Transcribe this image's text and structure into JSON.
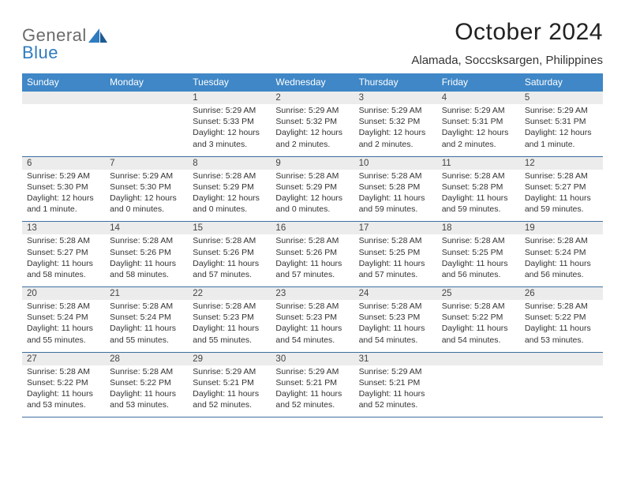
{
  "colors": {
    "header_bg": "#3f87c7",
    "daynum_bg": "#ececec",
    "row_border": "#3f6fa0",
    "logo_gray": "#6b6b6b",
    "logo_blue": "#2f7bbf"
  },
  "logo": {
    "general": "General",
    "blue": "Blue"
  },
  "title": "October 2024",
  "location": "Alamada, Soccsksargen, Philippines",
  "day_headers": [
    "Sunday",
    "Monday",
    "Tuesday",
    "Wednesday",
    "Thursday",
    "Friday",
    "Saturday"
  ],
  "weeks": [
    {
      "nums": [
        "",
        "",
        "1",
        "2",
        "3",
        "4",
        "5"
      ],
      "cells": [
        null,
        null,
        {
          "sunrise": "Sunrise: 5:29 AM",
          "sunset": "Sunset: 5:33 PM",
          "daylight": "Daylight: 12 hours and 3 minutes."
        },
        {
          "sunrise": "Sunrise: 5:29 AM",
          "sunset": "Sunset: 5:32 PM",
          "daylight": "Daylight: 12 hours and 2 minutes."
        },
        {
          "sunrise": "Sunrise: 5:29 AM",
          "sunset": "Sunset: 5:32 PM",
          "daylight": "Daylight: 12 hours and 2 minutes."
        },
        {
          "sunrise": "Sunrise: 5:29 AM",
          "sunset": "Sunset: 5:31 PM",
          "daylight": "Daylight: 12 hours and 2 minutes."
        },
        {
          "sunrise": "Sunrise: 5:29 AM",
          "sunset": "Sunset: 5:31 PM",
          "daylight": "Daylight: 12 hours and 1 minute."
        }
      ]
    },
    {
      "nums": [
        "6",
        "7",
        "8",
        "9",
        "10",
        "11",
        "12"
      ],
      "cells": [
        {
          "sunrise": "Sunrise: 5:29 AM",
          "sunset": "Sunset: 5:30 PM",
          "daylight": "Daylight: 12 hours and 1 minute."
        },
        {
          "sunrise": "Sunrise: 5:29 AM",
          "sunset": "Sunset: 5:30 PM",
          "daylight": "Daylight: 12 hours and 0 minutes."
        },
        {
          "sunrise": "Sunrise: 5:28 AM",
          "sunset": "Sunset: 5:29 PM",
          "daylight": "Daylight: 12 hours and 0 minutes."
        },
        {
          "sunrise": "Sunrise: 5:28 AM",
          "sunset": "Sunset: 5:29 PM",
          "daylight": "Daylight: 12 hours and 0 minutes."
        },
        {
          "sunrise": "Sunrise: 5:28 AM",
          "sunset": "Sunset: 5:28 PM",
          "daylight": "Daylight: 11 hours and 59 minutes."
        },
        {
          "sunrise": "Sunrise: 5:28 AM",
          "sunset": "Sunset: 5:28 PM",
          "daylight": "Daylight: 11 hours and 59 minutes."
        },
        {
          "sunrise": "Sunrise: 5:28 AM",
          "sunset": "Sunset: 5:27 PM",
          "daylight": "Daylight: 11 hours and 59 minutes."
        }
      ]
    },
    {
      "nums": [
        "13",
        "14",
        "15",
        "16",
        "17",
        "18",
        "19"
      ],
      "cells": [
        {
          "sunrise": "Sunrise: 5:28 AM",
          "sunset": "Sunset: 5:27 PM",
          "daylight": "Daylight: 11 hours and 58 minutes."
        },
        {
          "sunrise": "Sunrise: 5:28 AM",
          "sunset": "Sunset: 5:26 PM",
          "daylight": "Daylight: 11 hours and 58 minutes."
        },
        {
          "sunrise": "Sunrise: 5:28 AM",
          "sunset": "Sunset: 5:26 PM",
          "daylight": "Daylight: 11 hours and 57 minutes."
        },
        {
          "sunrise": "Sunrise: 5:28 AM",
          "sunset": "Sunset: 5:26 PM",
          "daylight": "Daylight: 11 hours and 57 minutes."
        },
        {
          "sunrise": "Sunrise: 5:28 AM",
          "sunset": "Sunset: 5:25 PM",
          "daylight": "Daylight: 11 hours and 57 minutes."
        },
        {
          "sunrise": "Sunrise: 5:28 AM",
          "sunset": "Sunset: 5:25 PM",
          "daylight": "Daylight: 11 hours and 56 minutes."
        },
        {
          "sunrise": "Sunrise: 5:28 AM",
          "sunset": "Sunset: 5:24 PM",
          "daylight": "Daylight: 11 hours and 56 minutes."
        }
      ]
    },
    {
      "nums": [
        "20",
        "21",
        "22",
        "23",
        "24",
        "25",
        "26"
      ],
      "cells": [
        {
          "sunrise": "Sunrise: 5:28 AM",
          "sunset": "Sunset: 5:24 PM",
          "daylight": "Daylight: 11 hours and 55 minutes."
        },
        {
          "sunrise": "Sunrise: 5:28 AM",
          "sunset": "Sunset: 5:24 PM",
          "daylight": "Daylight: 11 hours and 55 minutes."
        },
        {
          "sunrise": "Sunrise: 5:28 AM",
          "sunset": "Sunset: 5:23 PM",
          "daylight": "Daylight: 11 hours and 55 minutes."
        },
        {
          "sunrise": "Sunrise: 5:28 AM",
          "sunset": "Sunset: 5:23 PM",
          "daylight": "Daylight: 11 hours and 54 minutes."
        },
        {
          "sunrise": "Sunrise: 5:28 AM",
          "sunset": "Sunset: 5:23 PM",
          "daylight": "Daylight: 11 hours and 54 minutes."
        },
        {
          "sunrise": "Sunrise: 5:28 AM",
          "sunset": "Sunset: 5:22 PM",
          "daylight": "Daylight: 11 hours and 54 minutes."
        },
        {
          "sunrise": "Sunrise: 5:28 AM",
          "sunset": "Sunset: 5:22 PM",
          "daylight": "Daylight: 11 hours and 53 minutes."
        }
      ]
    },
    {
      "nums": [
        "27",
        "28",
        "29",
        "30",
        "31",
        "",
        ""
      ],
      "cells": [
        {
          "sunrise": "Sunrise: 5:28 AM",
          "sunset": "Sunset: 5:22 PM",
          "daylight": "Daylight: 11 hours and 53 minutes."
        },
        {
          "sunrise": "Sunrise: 5:28 AM",
          "sunset": "Sunset: 5:22 PM",
          "daylight": "Daylight: 11 hours and 53 minutes."
        },
        {
          "sunrise": "Sunrise: 5:29 AM",
          "sunset": "Sunset: 5:21 PM",
          "daylight": "Daylight: 11 hours and 52 minutes."
        },
        {
          "sunrise": "Sunrise: 5:29 AM",
          "sunset": "Sunset: 5:21 PM",
          "daylight": "Daylight: 11 hours and 52 minutes."
        },
        {
          "sunrise": "Sunrise: 5:29 AM",
          "sunset": "Sunset: 5:21 PM",
          "daylight": "Daylight: 11 hours and 52 minutes."
        },
        null,
        null
      ]
    }
  ]
}
